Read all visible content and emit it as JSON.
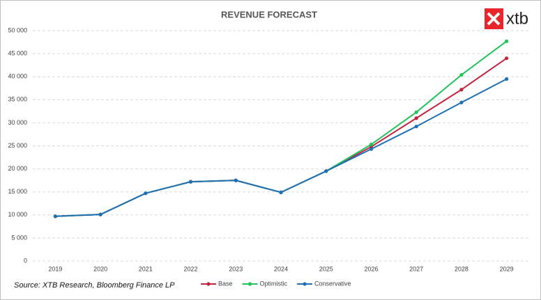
{
  "chart_data": {
    "type": "line",
    "title": "REVENUE FORECAST",
    "source": "Source: XTB Research, Bloomberg Finance LP",
    "logo": "xtb",
    "categories": [
      "2019",
      "2020",
      "2021",
      "2022",
      "2023",
      "2024",
      "2025",
      "2026",
      "2027",
      "2028",
      "2029"
    ],
    "series": [
      {
        "name": "Base",
        "color": "#c0253d",
        "values": [
          9700,
          10100,
          14700,
          17200,
          17500,
          14900,
          19500,
          24800,
          31000,
          37200,
          44000
        ]
      },
      {
        "name": "Optimistic",
        "color": "#21c25c",
        "values": [
          9700,
          10100,
          14700,
          17200,
          17500,
          14900,
          19500,
          25300,
          32300,
          40400,
          47700
        ]
      },
      {
        "name": "Conservative",
        "color": "#1f6fb4",
        "values": [
          9700,
          10100,
          14700,
          17200,
          17500,
          14900,
          19500,
          24300,
          29200,
          34400,
          39500
        ]
      }
    ],
    "ylim": [
      0,
      50000
    ],
    "yticks": [
      0,
      {
        "value": 5000,
        "label": "5 000"
      },
      {
        "value": 10000,
        "label": "10 000"
      },
      {
        "value": 15000,
        "label": "15 000"
      },
      {
        "value": 20000,
        "label": "20 000"
      },
      {
        "value": 25000,
        "label": "25 000"
      },
      {
        "value": 30000,
        "label": "30 000"
      },
      {
        "value": 35000,
        "label": "35 000"
      },
      {
        "value": 40000,
        "label": "40 000"
      },
      {
        "value": 45000,
        "label": "45 000"
      },
      {
        "value": 50000,
        "label": "50 000"
      }
    ],
    "grid": true,
    "legend": "bottom"
  }
}
